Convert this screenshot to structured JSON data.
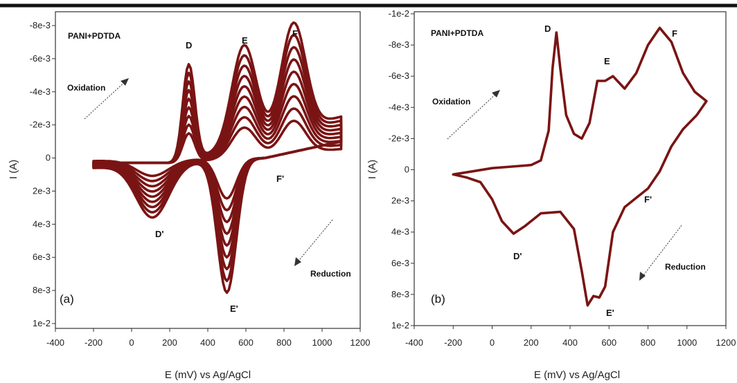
{
  "chart_data": [
    {
      "panel_label": "(a)",
      "type": "line",
      "title": "PANI+PDTDA",
      "xlabel": "E (mV) vs Ag/AgCl",
      "ylabel": "I (A)",
      "xlim": [
        -400,
        1200
      ],
      "ylim_display_top_to_bottom": [
        -0.008,
        0.01
      ],
      "x_ticks": [
        "-400",
        "-200",
        "0",
        "200",
        "400",
        "600",
        "800",
        "1000",
        "1200"
      ],
      "y_ticks": [
        "-8e-3",
        "-6e-3",
        "-4e-3",
        "-2e-3",
        "0",
        "2e-3",
        "4e-3",
        "6e-3",
        "8e-3",
        "1e-2"
      ],
      "grid": false,
      "curve_color": "#7a1414",
      "n_cycles": 9,
      "cycle_scale_range": [
        0.3,
        1.0
      ],
      "peaks_oxidation": [
        {
          "label": "D",
          "x": 300,
          "y": -0.0058
        },
        {
          "label": "E",
          "x": 590,
          "y": -0.006
        },
        {
          "label": "F",
          "x": 850,
          "y": -0.0065
        }
      ],
      "peaks_reduction": [
        {
          "label": "D'",
          "x": 110,
          "y": 0.0032
        },
        {
          "label": "E'",
          "x": 500,
          "y": 0.008
        },
        {
          "label": "F'",
          "x": 740,
          "y": 0.0006
        }
      ],
      "annotations": [
        "Oxidation",
        "Reduction"
      ],
      "peak_labels": [
        "D",
        "E",
        "F",
        "D'",
        "E'",
        "F'"
      ]
    },
    {
      "panel_label": "(b)",
      "type": "line",
      "title": "PANI+PDTDA",
      "xlabel": "E (mV) vs Ag/AgCl",
      "ylabel": "I (A)",
      "xlim": [
        -400,
        1200
      ],
      "ylim_display_top_to_bottom": [
        -0.01,
        0.01
      ],
      "x_ticks": [
        "-400",
        "-200",
        "0",
        "200",
        "400",
        "600",
        "800",
        "1000",
        "1200"
      ],
      "y_ticks": [
        "-1e-2",
        "-8e-3",
        "-6e-3",
        "-4e-3",
        "-2e-3",
        "0",
        "2e-3",
        "4e-3",
        "6e-3",
        "8e-3",
        "1e-2"
      ],
      "grid": false,
      "curve_color": "#7a1414",
      "points": [
        {
          "x": -200,
          "y": 0.0003
        },
        {
          "x": -100,
          "y": 0.0001
        },
        {
          "x": 0,
          "y": -0.0001
        },
        {
          "x": 100,
          "y": -0.0002
        },
        {
          "x": 200,
          "y": -0.0003
        },
        {
          "x": 250,
          "y": -0.0006
        },
        {
          "x": 290,
          "y": -0.0025
        },
        {
          "x": 310,
          "y": -0.0065
        },
        {
          "x": 330,
          "y": -0.0088
        },
        {
          "x": 350,
          "y": -0.0065
        },
        {
          "x": 380,
          "y": -0.0035
        },
        {
          "x": 420,
          "y": -0.0023
        },
        {
          "x": 460,
          "y": -0.002
        },
        {
          "x": 500,
          "y": -0.003
        },
        {
          "x": 540,
          "y": -0.0057
        },
        {
          "x": 580,
          "y": -0.0057
        },
        {
          "x": 620,
          "y": -0.006
        },
        {
          "x": 680,
          "y": -0.0052
        },
        {
          "x": 740,
          "y": -0.0062
        },
        {
          "x": 800,
          "y": -0.008
        },
        {
          "x": 860,
          "y": -0.0091
        },
        {
          "x": 920,
          "y": -0.0082
        },
        {
          "x": 980,
          "y": -0.0062
        },
        {
          "x": 1040,
          "y": -0.005
        },
        {
          "x": 1100,
          "y": -0.0044
        },
        {
          "x": 1050,
          "y": -0.0035
        },
        {
          "x": 980,
          "y": -0.0026
        },
        {
          "x": 920,
          "y": -0.0015
        },
        {
          "x": 860,
          "y": 0.0001
        },
        {
          "x": 800,
          "y": 0.0012
        },
        {
          "x": 740,
          "y": 0.0018
        },
        {
          "x": 680,
          "y": 0.0024
        },
        {
          "x": 620,
          "y": 0.004
        },
        {
          "x": 580,
          "y": 0.0075
        },
        {
          "x": 550,
          "y": 0.0082
        },
        {
          "x": 520,
          "y": 0.0081
        },
        {
          "x": 490,
          "y": 0.0087
        },
        {
          "x": 460,
          "y": 0.0065
        },
        {
          "x": 420,
          "y": 0.0038
        },
        {
          "x": 350,
          "y": 0.0027
        },
        {
          "x": 250,
          "y": 0.0028
        },
        {
          "x": 170,
          "y": 0.0036
        },
        {
          "x": 110,
          "y": 0.0041
        },
        {
          "x": 50,
          "y": 0.0033
        },
        {
          "x": 0,
          "y": 0.0019
        },
        {
          "x": -60,
          "y": 0.0008
        },
        {
          "x": -130,
          "y": 0.0005
        },
        {
          "x": -200,
          "y": 0.0003
        }
      ],
      "peaks_oxidation": [
        {
          "label": "D",
          "x": 330,
          "y": -0.0088
        },
        {
          "label": "E",
          "x": 600,
          "y": -0.006
        },
        {
          "label": "F",
          "x": 860,
          "y": -0.0091
        }
      ],
      "peaks_reduction": [
        {
          "label": "D'",
          "x": 110,
          "y": 0.0041
        },
        {
          "label": "E'",
          "x": 490,
          "y": 0.0087
        },
        {
          "label": "F'",
          "x": 800,
          "y": 0.0012
        }
      ],
      "annotations": [
        "Oxidation",
        "Reduction"
      ],
      "peak_labels": [
        "D",
        "E",
        "F",
        "D'",
        "E'",
        "F'"
      ]
    }
  ]
}
